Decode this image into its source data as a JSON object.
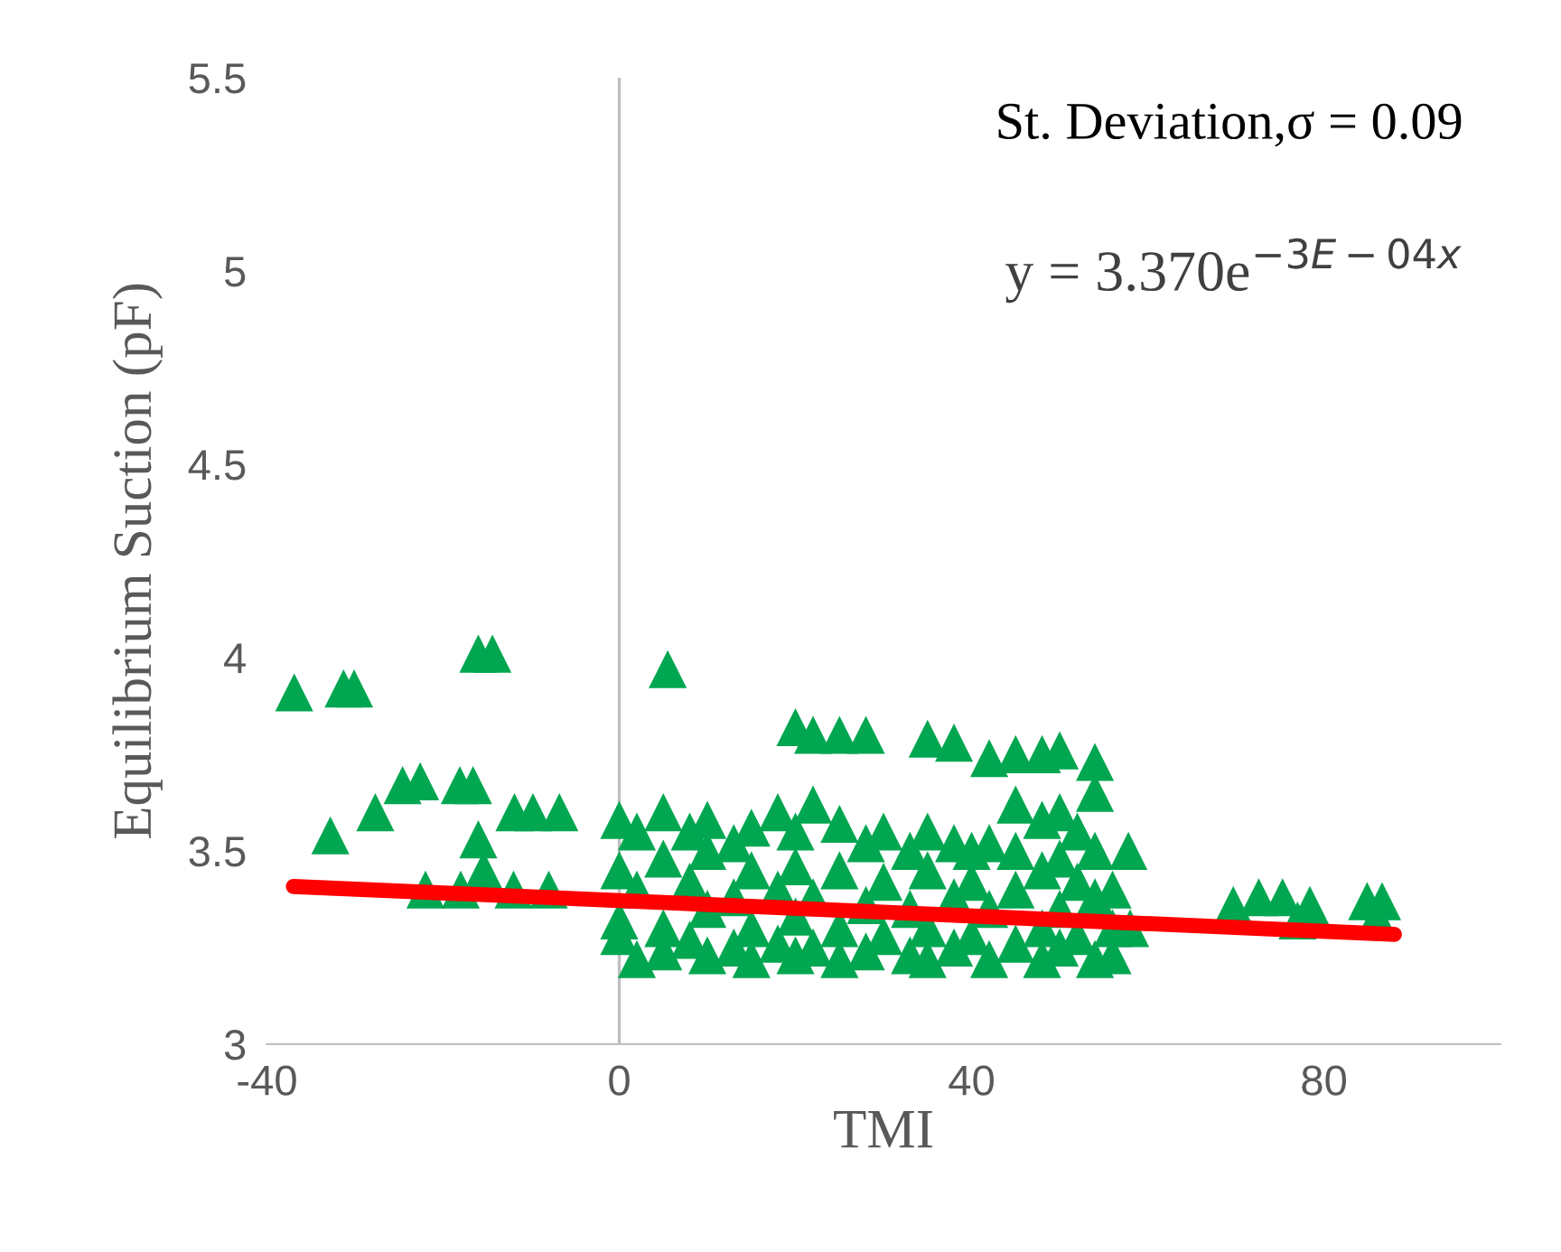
{
  "chart_data": {
    "type": "scatter",
    "xlabel": "TMI",
    "ylabel": "Equilibrium Suction (pF)",
    "xlim": [
      -40,
      100
    ],
    "ylim": [
      3,
      5.5
    ],
    "xticks": [
      -40,
      0,
      40,
      80
    ],
    "yticks": [
      3,
      3.5,
      4,
      4.5,
      5,
      5.5
    ],
    "grid": false,
    "legend": false,
    "marker": "triangle",
    "ref_lines": [
      {
        "axis": "x",
        "value": 0,
        "color": "#bfbfbf"
      }
    ],
    "annotations": [
      {
        "text": "St. Deviation,σ = 0.09"
      },
      {
        "text": "y = 3.370e$^{−3E−04x}$"
      }
    ],
    "series": [
      {
        "color": "#00a650",
        "x": [
          -36.9,
          -31.3,
          -30.1,
          -32.8,
          -27.7,
          -24.6,
          -22.6,
          -18.1,
          -16.6,
          -16.0,
          -14.4,
          -16.0,
          -11.9,
          -9.8,
          -6.8,
          -22,
          -18,
          -12,
          -8,
          -15.4,
          5.5,
          0,
          0,
          0,
          0,
          2,
          2,
          2,
          5,
          5,
          5,
          5,
          8,
          8,
          8,
          10,
          10,
          10,
          10,
          13,
          13,
          13,
          15,
          15,
          15,
          15,
          18,
          18,
          18,
          20,
          20,
          20,
          20,
          20,
          22,
          22,
          22,
          22,
          25,
          25,
          25,
          25,
          25,
          28,
          28,
          28,
          28,
          30,
          30,
          30,
          33,
          33,
          33,
          35,
          35,
          35,
          35,
          35,
          38,
          38,
          38,
          38,
          40,
          40,
          40,
          42,
          42,
          42,
          42,
          45,
          45,
          45,
          45,
          45,
          48,
          48,
          48,
          48,
          48,
          50,
          50,
          50,
          50,
          50,
          52,
          52,
          52,
          54,
          54,
          54,
          54,
          54,
          56,
          56,
          56,
          58,
          57.8,
          69.7,
          72.6,
          75.3,
          78.4,
          77,
          84.9,
          86.6,
          86
        ],
        "values": [
          3.91,
          3.92,
          3.92,
          3.54,
          3.6,
          3.67,
          3.68,
          3.67,
          3.67,
          4.01,
          4.01,
          3.53,
          3.6,
          3.6,
          3.6,
          3.4,
          3.4,
          3.4,
          3.4,
          3.45,
          3.97,
          3.58,
          3.45,
          3.32,
          3.28,
          3.55,
          3.4,
          3.22,
          3.6,
          3.48,
          3.3,
          3.24,
          3.55,
          3.42,
          3.27,
          3.58,
          3.5,
          3.35,
          3.23,
          3.52,
          3.38,
          3.25,
          3.56,
          3.45,
          3.3,
          3.22,
          3.6,
          3.4,
          3.26,
          3.82,
          3.55,
          3.46,
          3.33,
          3.23,
          3.8,
          3.62,
          3.38,
          3.25,
          3.8,
          3.57,
          3.45,
          3.3,
          3.22,
          3.8,
          3.52,
          3.36,
          3.24,
          3.55,
          3.42,
          3.28,
          3.5,
          3.35,
          3.23,
          3.79,
          3.55,
          3.45,
          3.3,
          3.22,
          3.78,
          3.52,
          3.38,
          3.25,
          3.5,
          3.42,
          3.28,
          3.74,
          3.52,
          3.35,
          3.22,
          3.75,
          3.62,
          3.5,
          3.4,
          3.26,
          3.75,
          3.58,
          3.45,
          3.3,
          3.22,
          3.76,
          3.6,
          3.48,
          3.35,
          3.25,
          3.55,
          3.42,
          3.28,
          3.73,
          3.65,
          3.5,
          3.38,
          3.22,
          3.4,
          3.3,
          3.23,
          3.3,
          3.5,
          3.36,
          3.38,
          3.38,
          3.36,
          3.32,
          3.37,
          3.37,
          3.33
        ]
      },
      {
        "type": "line",
        "color": "#ff0000",
        "marker": "none",
        "x": [
          -37,
          88
        ],
        "values": [
          3.408,
          3.284
        ]
      }
    ]
  }
}
